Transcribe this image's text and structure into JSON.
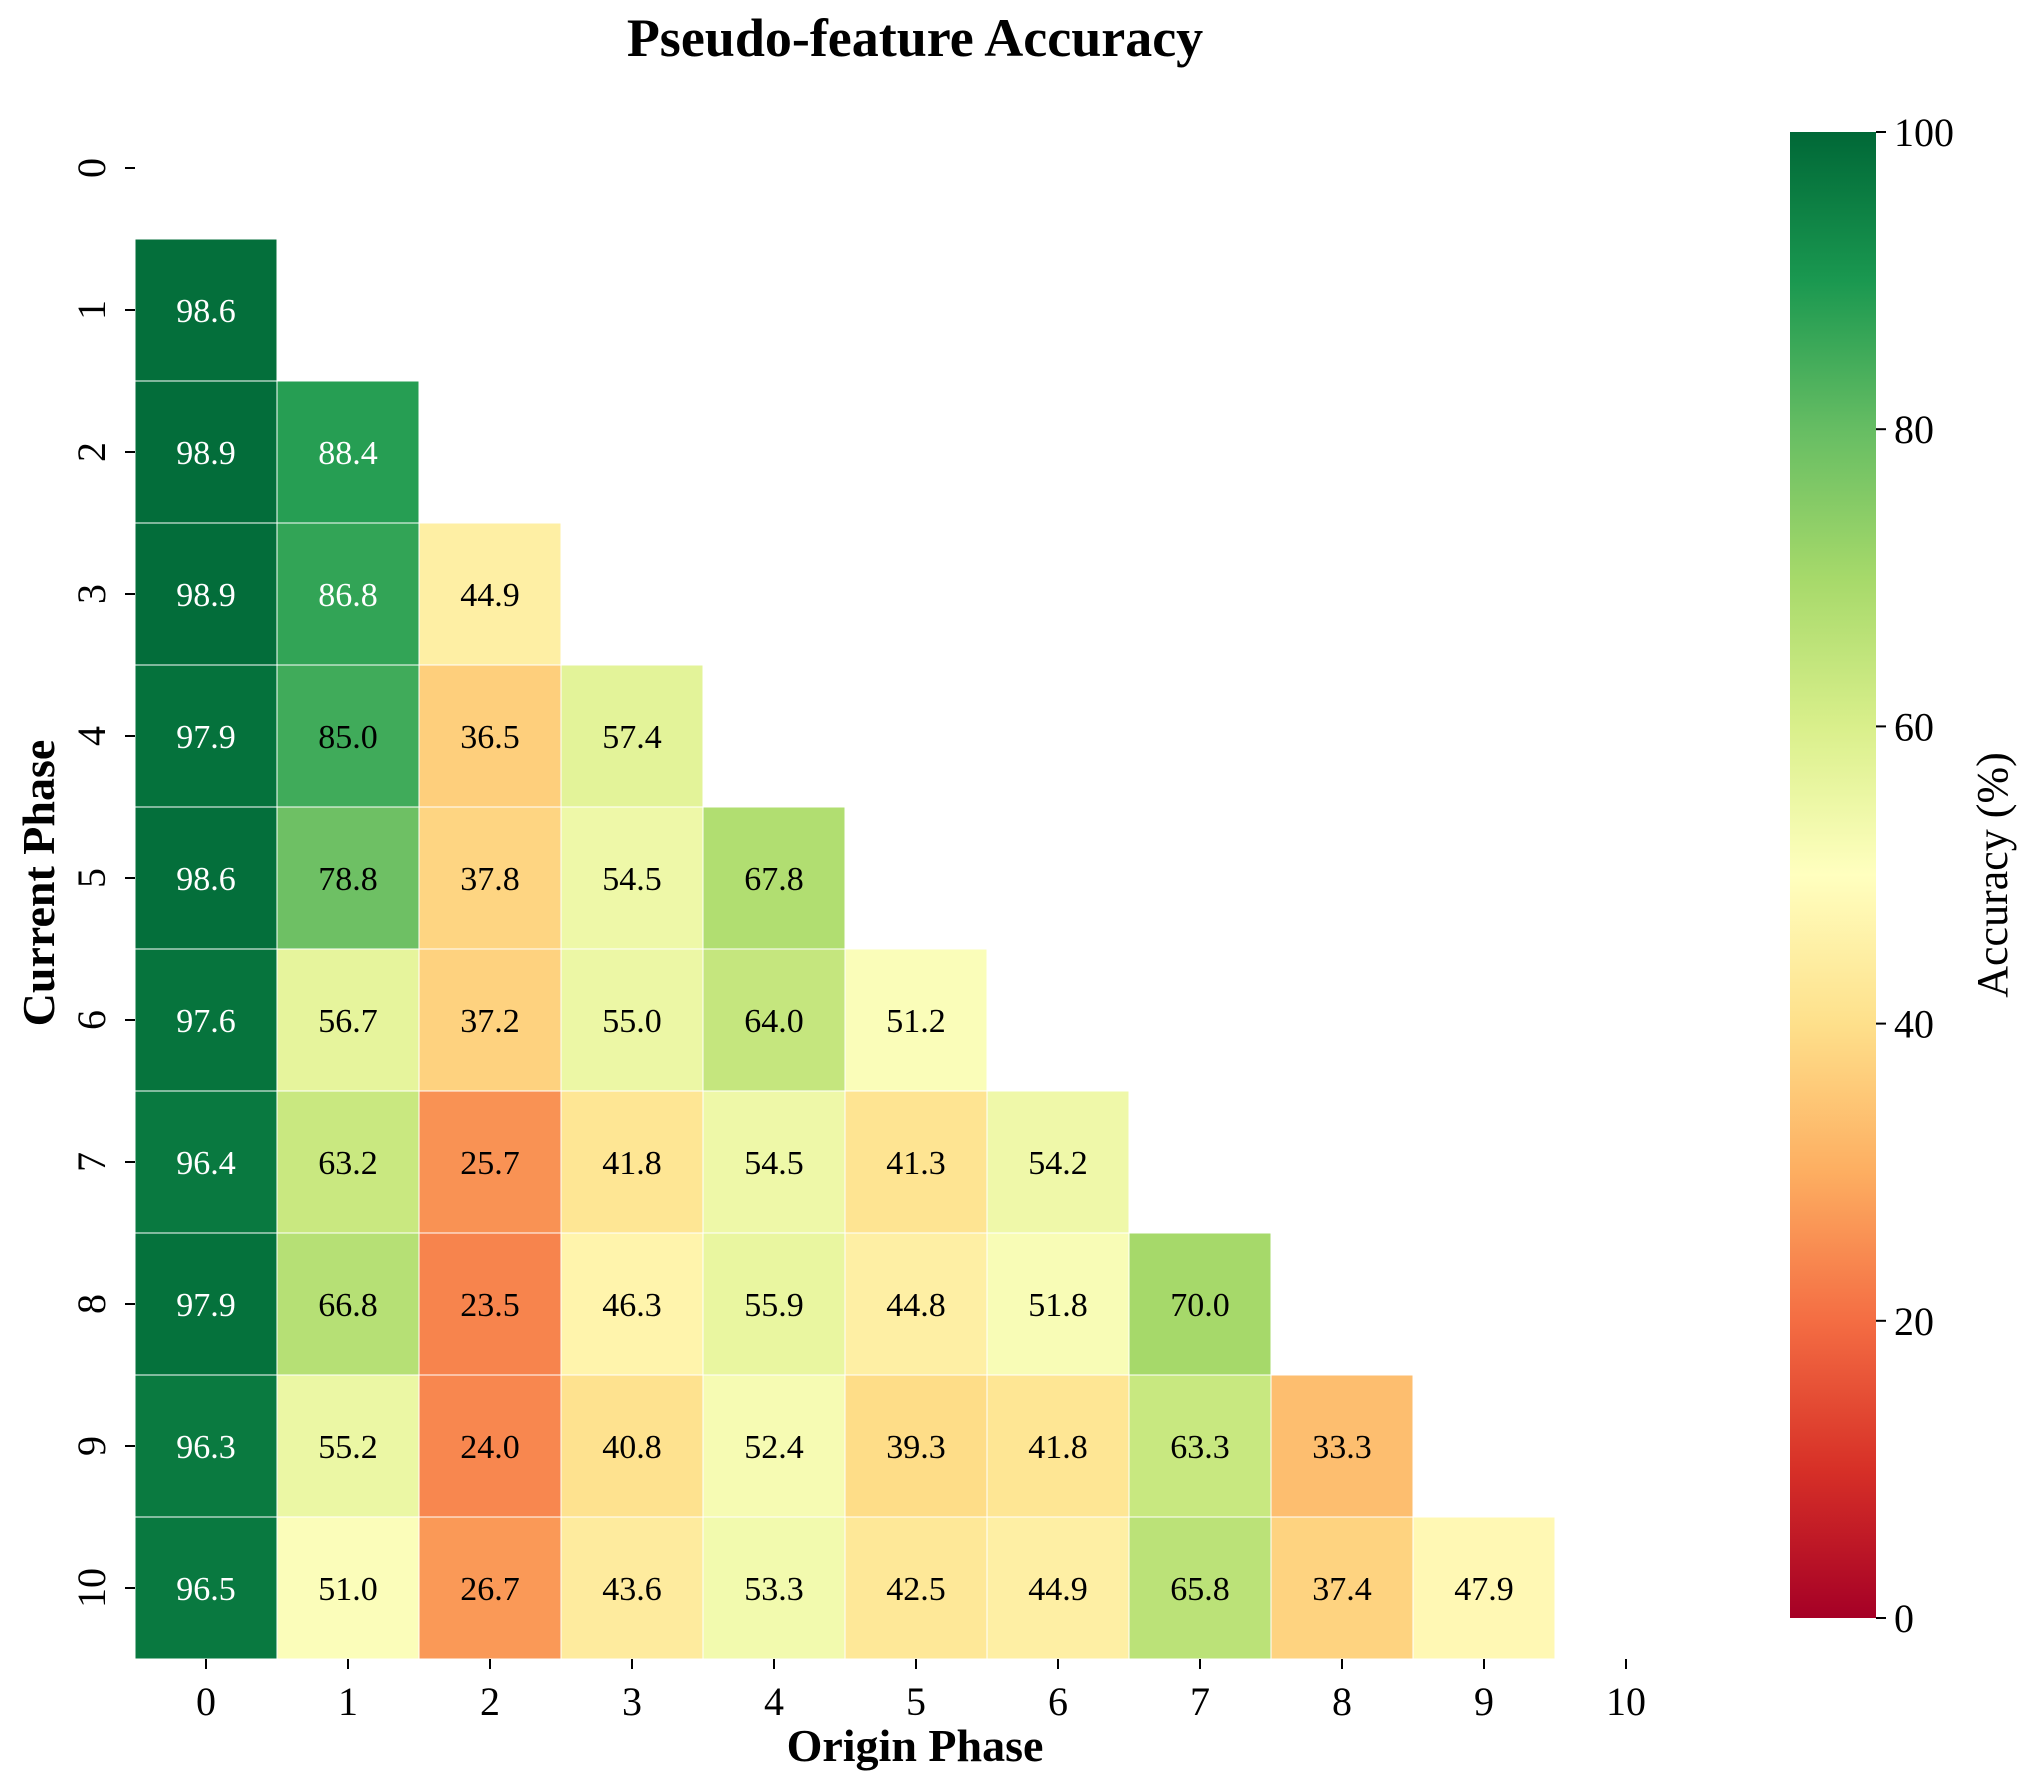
{
  "chart_data": {
    "type": "heatmap",
    "title": "Pseudo-feature Accuracy",
    "xlabel": "Origin Phase",
    "ylabel": "Current Phase",
    "x_categories": [
      "0",
      "1",
      "2",
      "3",
      "4",
      "5",
      "6",
      "7",
      "8",
      "9",
      "10"
    ],
    "y_categories": [
      "0",
      "1",
      "2",
      "3",
      "4",
      "5",
      "6",
      "7",
      "8",
      "9",
      "10"
    ],
    "values": [
      [
        null,
        null,
        null,
        null,
        null,
        null,
        null,
        null,
        null,
        null,
        null
      ],
      [
        98.6,
        null,
        null,
        null,
        null,
        null,
        null,
        null,
        null,
        null,
        null
      ],
      [
        98.9,
        88.4,
        null,
        null,
        null,
        null,
        null,
        null,
        null,
        null,
        null
      ],
      [
        98.9,
        86.8,
        44.9,
        null,
        null,
        null,
        null,
        null,
        null,
        null,
        null
      ],
      [
        97.9,
        85.0,
        36.5,
        57.4,
        null,
        null,
        null,
        null,
        null,
        null,
        null
      ],
      [
        98.6,
        78.8,
        37.8,
        54.5,
        67.8,
        null,
        null,
        null,
        null,
        null,
        null
      ],
      [
        97.6,
        56.7,
        37.2,
        55.0,
        64.0,
        51.2,
        null,
        null,
        null,
        null,
        null
      ],
      [
        96.4,
        63.2,
        25.7,
        41.8,
        54.5,
        41.3,
        54.2,
        null,
        null,
        null,
        null
      ],
      [
        97.9,
        66.8,
        23.5,
        46.3,
        55.9,
        44.8,
        51.8,
        70.0,
        null,
        null,
        null
      ],
      [
        96.3,
        55.2,
        24.0,
        40.8,
        52.4,
        39.3,
        41.8,
        63.3,
        33.3,
        null,
        null
      ],
      [
        96.5,
        51.0,
        26.7,
        43.6,
        53.3,
        42.5,
        44.9,
        65.8,
        37.4,
        47.9,
        null
      ]
    ],
    "value_format": "one decimal",
    "colorbar": {
      "label": "Accuracy (%)",
      "range": [
        0,
        100
      ],
      "ticks": [
        "0",
        "20",
        "40",
        "60",
        "80",
        "100"
      ],
      "colormap": "RdYlGn",
      "stops": [
        "#a50026",
        "#d73027",
        "#f46d43",
        "#fdae61",
        "#fee08b",
        "#ffffbf",
        "#d9ef8b",
        "#a6d96a",
        "#66bd63",
        "#1a9850",
        "#006837"
      ]
    },
    "grid": false,
    "cell_border_color": "#ffffff"
  }
}
